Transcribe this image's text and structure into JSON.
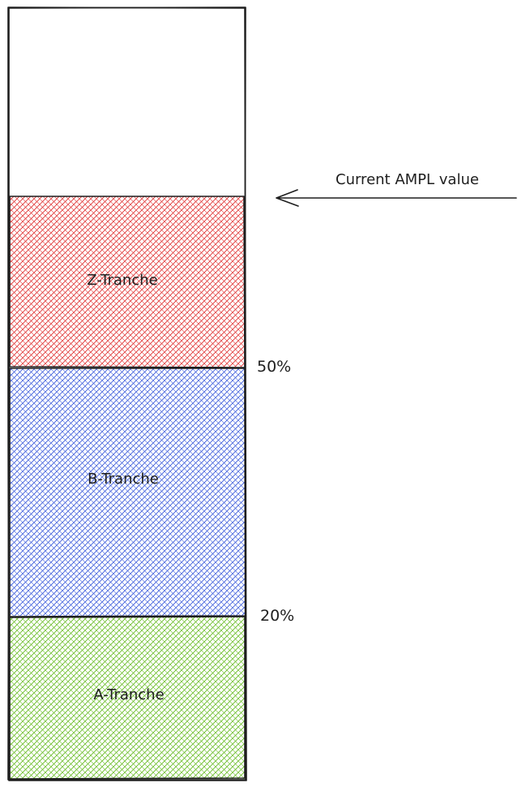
{
  "annotation": {
    "label": "Current AMPL value"
  },
  "tranches": [
    {
      "name": "Z-Tranche",
      "color": "#e03131"
    },
    {
      "name": "B-Tranche",
      "color": "#3b5bdb"
    },
    {
      "name": "A-Tranche",
      "color": "#66bb22"
    }
  ],
  "thresholds": {
    "upper": "50%",
    "lower": "20%"
  },
  "colors": {
    "stroke": "#1e1e1e",
    "background": "#ffffff"
  }
}
